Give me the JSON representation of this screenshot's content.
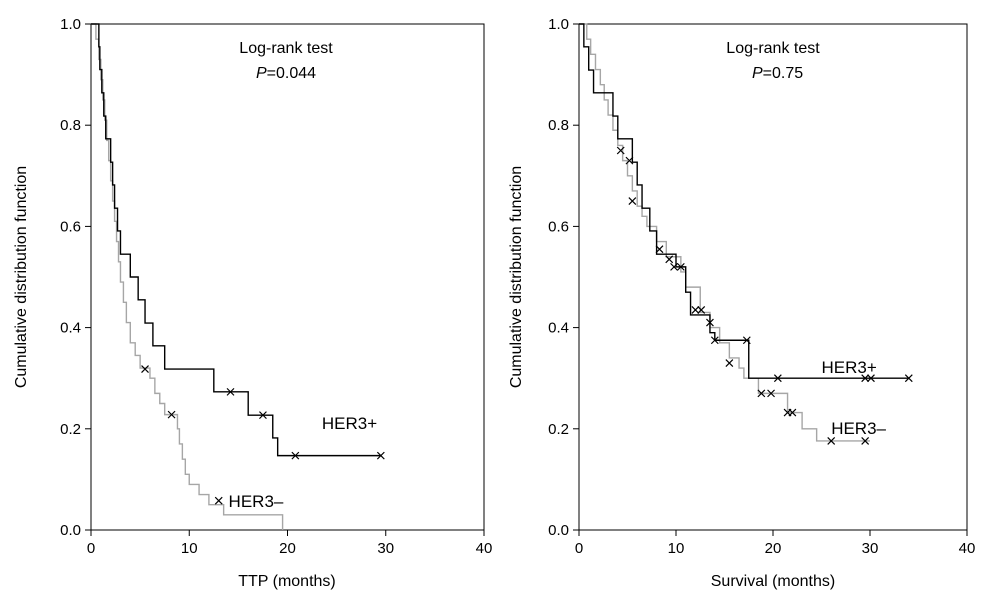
{
  "chart_data": [
    {
      "type": "line",
      "subtype": "kaplan-meier step",
      "xlabel": "TTP (months)",
      "ylabel": "Cumulative distribution function",
      "xlim": [
        0,
        40
      ],
      "ylim": [
        0,
        1
      ],
      "xticks": [
        "0",
        "10",
        "20",
        "30",
        "40"
      ],
      "yticks": [
        "0.0",
        "0.2",
        "0.4",
        "0.6",
        "0.8",
        "1.0"
      ],
      "grid": false,
      "annotation": {
        "line1": "Log-rank test",
        "p_italic": "P",
        "p_value": "=0.044"
      },
      "series": [
        {
          "name": "HER3+",
          "color": "#000000",
          "steps": [
            [
              0,
              1.0
            ],
            [
              0.8,
              0.955
            ],
            [
              0.9,
              0.91
            ],
            [
              1.1,
              0.864
            ],
            [
              1.3,
              0.818
            ],
            [
              1.5,
              0.773
            ],
            [
              2.0,
              0.727
            ],
            [
              2.2,
              0.682
            ],
            [
              2.4,
              0.636
            ],
            [
              2.7,
              0.591
            ],
            [
              3.0,
              0.545
            ],
            [
              4.0,
              0.5
            ],
            [
              4.8,
              0.455
            ],
            [
              5.5,
              0.409
            ],
            [
              6.3,
              0.364
            ],
            [
              7.5,
              0.318
            ],
            [
              12.5,
              0.273
            ],
            [
              16.0,
              0.227
            ],
            [
              18.5,
              0.182
            ],
            [
              19.0,
              0.147
            ],
            [
              29.5,
              0.147
            ]
          ],
          "censored": [
            [
              5.5,
              0.318
            ],
            [
              14.2,
              0.273
            ],
            [
              17.5,
              0.227
            ],
            [
              20.8,
              0.147
            ],
            [
              29.5,
              0.147
            ]
          ]
        },
        {
          "name": "HER3–",
          "color": "#a6a6a6",
          "steps": [
            [
              0,
              1.0
            ],
            [
              0.5,
              0.97
            ],
            [
              0.8,
              0.93
            ],
            [
              1.0,
              0.89
            ],
            [
              1.2,
              0.85
            ],
            [
              1.4,
              0.81
            ],
            [
              1.6,
              0.77
            ],
            [
              1.8,
              0.73
            ],
            [
              2.0,
              0.69
            ],
            [
              2.2,
              0.65
            ],
            [
              2.4,
              0.61
            ],
            [
              2.6,
              0.57
            ],
            [
              2.8,
              0.53
            ],
            [
              3.0,
              0.49
            ],
            [
              3.3,
              0.45
            ],
            [
              3.6,
              0.41
            ],
            [
              4.0,
              0.37
            ],
            [
              4.5,
              0.345
            ],
            [
              5.0,
              0.32
            ],
            [
              6.0,
              0.3
            ],
            [
              6.5,
              0.27
            ],
            [
              7.0,
              0.25
            ],
            [
              7.5,
              0.228
            ],
            [
              8.8,
              0.2
            ],
            [
              9.0,
              0.17
            ],
            [
              9.3,
              0.14
            ],
            [
              9.6,
              0.11
            ],
            [
              10.0,
              0.09
            ],
            [
              11.0,
              0.07
            ],
            [
              12.0,
              0.05
            ],
            [
              13.5,
              0.03
            ],
            [
              19.5,
              0.0
            ]
          ],
          "censored": [
            [
              8.2,
              0.228
            ],
            [
              13.0,
              0.058
            ]
          ]
        }
      ],
      "labels": [
        {
          "text": "HER3+",
          "x": 23.5,
          "y": 0.2
        },
        {
          "text": "HER3–",
          "x": 14.0,
          "y": 0.045
        }
      ]
    },
    {
      "type": "line",
      "subtype": "kaplan-meier step",
      "xlabel": "Survival (months)",
      "ylabel": "Cumulative distribution function",
      "xlim": [
        0,
        40
      ],
      "ylim": [
        0,
        1
      ],
      "xticks": [
        "0",
        "10",
        "20",
        "30",
        "40"
      ],
      "yticks": [
        "0.0",
        "0.2",
        "0.4",
        "0.6",
        "0.8",
        "1.0"
      ],
      "grid": false,
      "annotation": {
        "line1": "Log-rank test",
        "p_italic": "P",
        "p_value": "=0.75"
      },
      "series": [
        {
          "name": "HER3+",
          "color": "#000000",
          "steps": [
            [
              0,
              1.0
            ],
            [
              0.5,
              0.955
            ],
            [
              1.0,
              0.909
            ],
            [
              1.5,
              0.864
            ],
            [
              3.5,
              0.818
            ],
            [
              4.0,
              0.773
            ],
            [
              5.5,
              0.727
            ],
            [
              6.0,
              0.682
            ],
            [
              6.5,
              0.636
            ],
            [
              7.3,
              0.591
            ],
            [
              8.0,
              0.545
            ],
            [
              10.0,
              0.52
            ],
            [
              11.0,
              0.47
            ],
            [
              11.5,
              0.425
            ],
            [
              13.5,
              0.39
            ],
            [
              14.0,
              0.375
            ],
            [
              17.5,
              0.3
            ],
            [
              34.0,
              0.3
            ]
          ],
          "censored": [
            [
              4.3,
              0.75
            ],
            [
              5.2,
              0.73
            ],
            [
              5.5,
              0.65
            ],
            [
              8.3,
              0.555
            ],
            [
              9.3,
              0.535
            ],
            [
              10.5,
              0.52
            ],
            [
              13.5,
              0.41
            ],
            [
              17.3,
              0.375
            ],
            [
              20.5,
              0.3
            ],
            [
              29.5,
              0.3
            ],
            [
              30.1,
              0.3
            ],
            [
              34.0,
              0.3
            ]
          ]
        },
        {
          "name": "HER3–",
          "color": "#a6a6a6",
          "steps": [
            [
              0,
              1.0
            ],
            [
              0.8,
              0.97
            ],
            [
              1.2,
              0.94
            ],
            [
              1.7,
              0.91
            ],
            [
              2.2,
              0.88
            ],
            [
              2.6,
              0.85
            ],
            [
              3.0,
              0.82
            ],
            [
              3.5,
              0.79
            ],
            [
              4.0,
              0.76
            ],
            [
              4.5,
              0.73
            ],
            [
              5.0,
              0.7
            ],
            [
              5.5,
              0.67
            ],
            [
              6.0,
              0.64
            ],
            [
              6.5,
              0.62
            ],
            [
              7.0,
              0.6
            ],
            [
              8.0,
              0.57
            ],
            [
              9.0,
              0.54
            ],
            [
              10.5,
              0.51
            ],
            [
              11.0,
              0.48
            ],
            [
              12.5,
              0.43
            ],
            [
              13.5,
              0.4
            ],
            [
              14.5,
              0.37
            ],
            [
              15.5,
              0.34
            ],
            [
              16.5,
              0.32
            ],
            [
              17.0,
              0.3
            ],
            [
              18.5,
              0.27
            ],
            [
              21.5,
              0.232
            ],
            [
              23.0,
              0.2
            ],
            [
              24.5,
              0.176
            ],
            [
              30.0,
              0.176
            ]
          ],
          "censored": [
            [
              9.8,
              0.52
            ],
            [
              12.0,
              0.435
            ],
            [
              12.6,
              0.435
            ],
            [
              14.0,
              0.375
            ],
            [
              15.5,
              0.33
            ],
            [
              18.8,
              0.27
            ],
            [
              19.8,
              0.27
            ],
            [
              21.5,
              0.232
            ],
            [
              22.0,
              0.232
            ],
            [
              26.0,
              0.176
            ],
            [
              29.5,
              0.176
            ]
          ]
        }
      ],
      "labels": [
        {
          "text": "HER3+",
          "x": 25.0,
          "y": 0.31
        },
        {
          "text": "HER3–",
          "x": 26.0,
          "y": 0.19
        }
      ]
    }
  ]
}
